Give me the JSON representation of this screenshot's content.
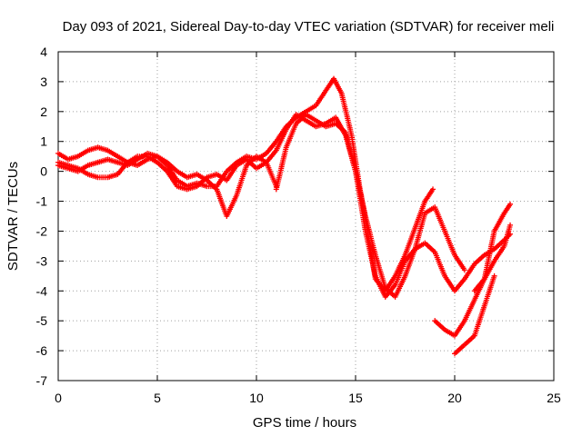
{
  "chart_data": {
    "type": "scatter",
    "title": "Day 093 of 2021, Sidereal Day-to-day VTEC variation (SDTVAR) for receiver meli",
    "xlabel": "GPS time / hours",
    "ylabel": "SDTVAR / TECUs",
    "xlim": [
      0,
      25
    ],
    "ylim": [
      -7,
      4
    ],
    "xticks": [
      0,
      5,
      10,
      15,
      20,
      25
    ],
    "yticks": [
      -7,
      -6,
      -5,
      -4,
      -3,
      -2,
      -1,
      0,
      1,
      2,
      3,
      4
    ],
    "grid": true,
    "marker": "+",
    "color": "#ff0000",
    "series": [
      {
        "x": [
          0,
          0.5,
          1,
          1.5,
          2,
          2.5,
          3,
          3.5,
          4,
          4.5,
          5,
          5.5,
          6,
          6.5,
          7,
          7.5,
          8,
          8.5,
          9,
          9.5,
          10,
          10.5,
          11,
          11.5,
          12,
          12.5,
          13,
          13.5,
          13.9,
          14.3,
          14.8,
          15.2,
          15.6,
          16,
          16.5,
          17,
          17.5,
          18,
          18.5,
          18.9
        ],
        "y": [
          0.6,
          0.4,
          0.5,
          0.7,
          0.8,
          0.7,
          0.5,
          0.3,
          0.2,
          0.4,
          0.5,
          0.2,
          -0.3,
          -0.5,
          -0.4,
          -0.5,
          -0.5,
          0.0,
          0.3,
          0.5,
          0.4,
          0.6,
          1.0,
          1.5,
          1.8,
          2.0,
          2.2,
          2.7,
          3.1,
          2.6,
          1.2,
          -0.5,
          -2.0,
          -3.6,
          -4.0,
          -3.5,
          -2.8,
          -1.9,
          -1.0,
          -0.6
        ]
      },
      {
        "x": [
          0,
          0.5,
          1,
          1.5,
          2,
          2.5,
          3,
          3.5,
          4,
          4.5,
          5,
          5.5,
          6,
          6.5,
          7,
          7.5,
          8,
          8.5,
          9,
          9.5,
          10,
          10.5,
          11,
          11.5,
          12,
          12.5,
          13,
          13.5,
          14,
          14.5,
          15,
          15.5,
          16,
          16.5,
          17,
          17.5,
          18,
          18.5,
          19,
          19.5,
          20,
          20.5
        ],
        "y": [
          0.2,
          0.1,
          0.0,
          0.2,
          0.3,
          0.4,
          0.3,
          0.2,
          0.4,
          0.6,
          0.5,
          0.3,
          0.0,
          -0.2,
          -0.1,
          -0.3,
          -0.6,
          -1.5,
          -0.8,
          0.2,
          0.5,
          0.3,
          0.7,
          1.4,
          1.9,
          1.7,
          1.5,
          1.6,
          1.8,
          1.2,
          0.0,
          -1.5,
          -2.8,
          -3.9,
          -4.2,
          -3.5,
          -2.6,
          -1.4,
          -1.2,
          -2.0,
          -2.8,
          -3.3
        ]
      },
      {
        "x": [
          0,
          0.5,
          1,
          1.5,
          2,
          2.5,
          3,
          3.5,
          4,
          4.5,
          5,
          5.5,
          6,
          6.5,
          7,
          7.5,
          8,
          8.5,
          9,
          9.5,
          10,
          10.5,
          11
        ],
        "y": [
          0.3,
          0.2,
          0.1,
          -0.1,
          -0.2,
          -0.2,
          -0.1,
          0.3,
          0.5,
          0.5,
          0.3,
          0.0,
          -0.5,
          -0.6,
          -0.5,
          -0.2,
          -0.1,
          -0.3,
          0.2,
          0.4,
          0.1,
          0.3,
          -0.5
        ]
      },
      {
        "x": [
          11,
          11.5,
          12,
          12.5,
          13,
          13.5,
          14,
          14.5,
          15,
          15.5,
          16,
          16.5,
          17,
          17.5,
          18,
          18.5,
          19,
          19.5,
          20,
          20.5,
          21,
          21.5,
          22,
          22.5,
          22.8
        ],
        "y": [
          -0.6,
          0.8,
          1.6,
          1.9,
          1.7,
          1.5,
          1.6,
          1.3,
          0.0,
          -2.0,
          -3.5,
          -4.2,
          -3.8,
          -3.0,
          -2.6,
          -2.4,
          -2.7,
          -3.5,
          -4.0,
          -3.6,
          -3.1,
          -2.8,
          -2.6,
          -2.3,
          -2.1
        ]
      },
      {
        "x": [
          19,
          19.5,
          20,
          20.5,
          21,
          21.5,
          22,
          22.5,
          22.8
        ],
        "y": [
          -5.0,
          -5.3,
          -5.5,
          -5.0,
          -4.3,
          -3.6,
          -3.0,
          -2.5,
          -1.8
        ]
      },
      {
        "x": [
          20,
          20.5,
          21,
          21.5,
          22
        ],
        "y": [
          -6.1,
          -5.8,
          -5.5,
          -4.5,
          -3.5
        ]
      },
      {
        "x": [
          21,
          21.5,
          22,
          22.5,
          22.8
        ],
        "y": [
          -4.0,
          -3.6,
          -2.0,
          -1.4,
          -1.1
        ]
      }
    ]
  }
}
